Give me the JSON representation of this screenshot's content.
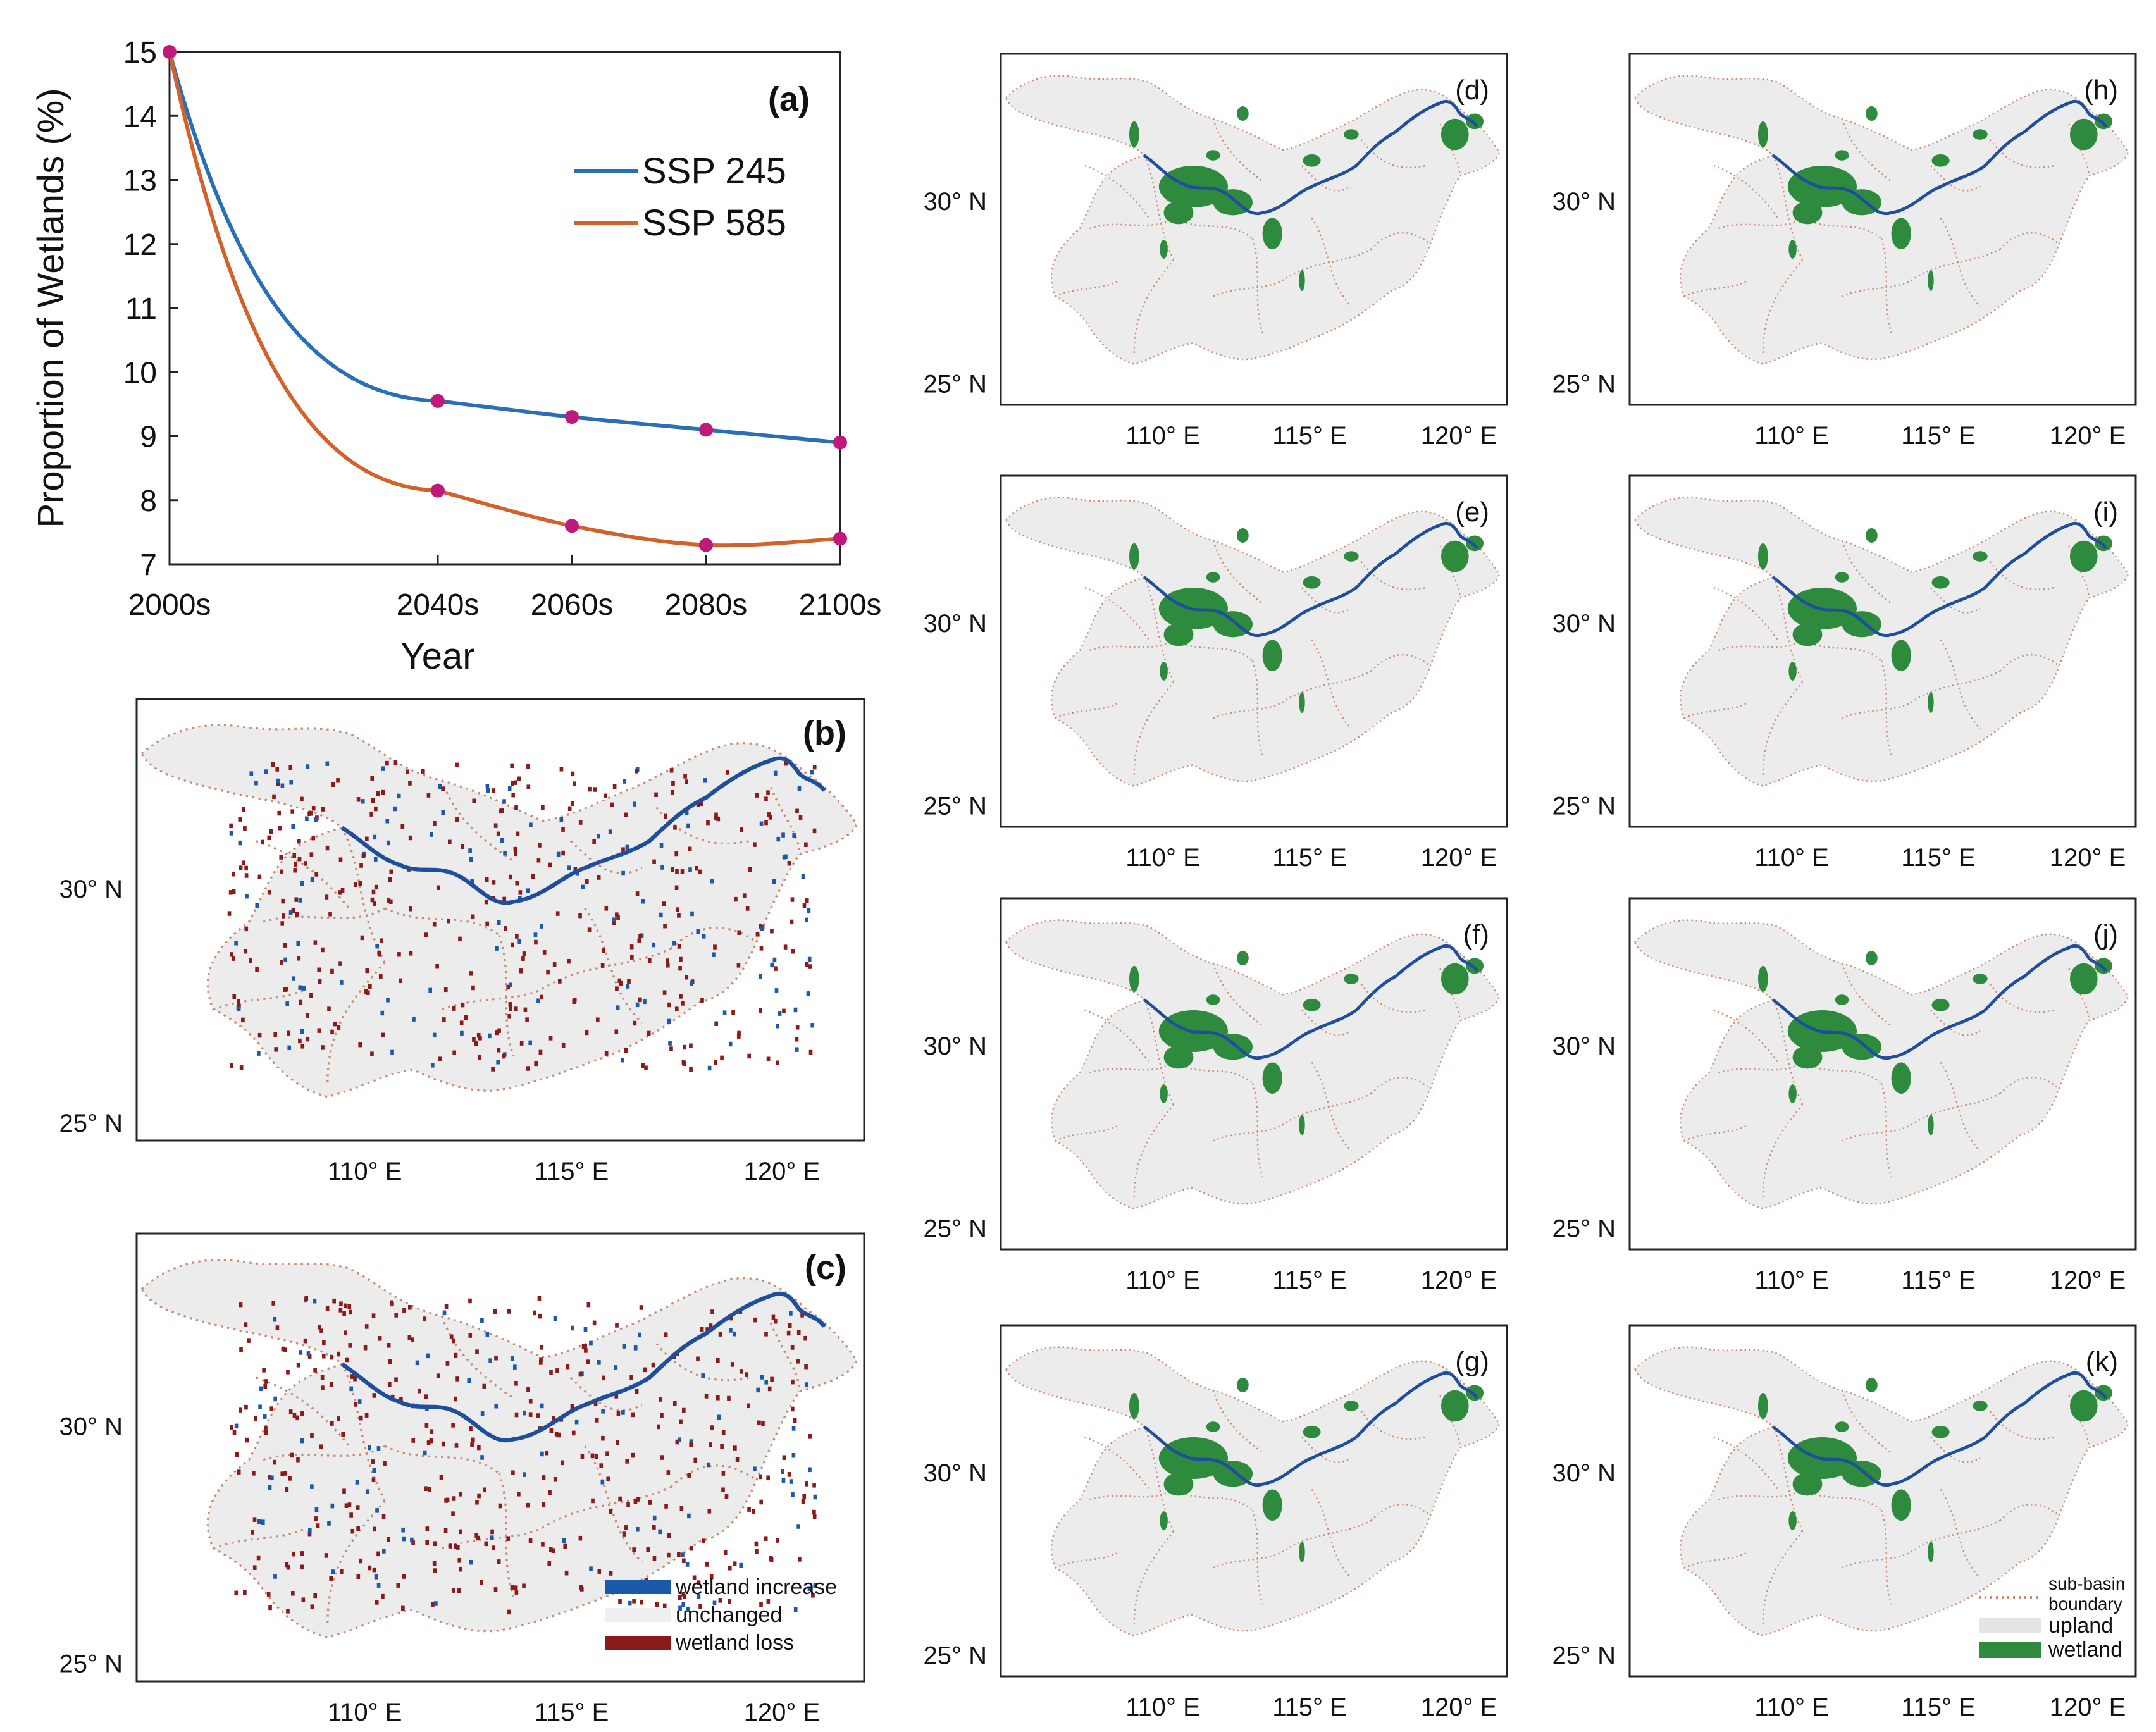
{
  "chart_data": [
    {
      "panel": "(a)",
      "type": "line",
      "ylabel": "Proportion of Wetlands (%)",
      "xlabel": "Year",
      "categories": [
        "2000s",
        "2040s",
        "2060s",
        "2080s",
        "2100s"
      ],
      "x": [
        2000,
        2040,
        2060,
        2080,
        2100
      ],
      "ylim": [
        7,
        15
      ],
      "yticks": [
        7,
        8,
        9,
        10,
        11,
        12,
        13,
        14,
        15
      ],
      "legend_position": "top-right",
      "series": [
        {
          "name": "SSP 245",
          "color": "#2a6fb5",
          "values": [
            15.0,
            9.55,
            9.3,
            9.1,
            8.9
          ]
        },
        {
          "name": "SSP 585",
          "color": "#d2622b",
          "values": [
            15.0,
            8.15,
            7.6,
            7.3,
            7.4
          ]
        }
      ],
      "marker_color": "#c0197a"
    }
  ],
  "maps": {
    "lon_ticks": [
      "110° E",
      "115° E",
      "120° E"
    ],
    "lat_ticks": [
      "30° N",
      "25° N"
    ],
    "change_panels": [
      "(b)",
      "(c)"
    ],
    "wetland_panels": [
      "(d)",
      "(e)",
      "(f)",
      "(g)",
      "(h)",
      "(i)",
      "(j)",
      "(k)"
    ],
    "change_legend": [
      {
        "label": "wetland increase",
        "color": "#1a5aa8"
      },
      {
        "label": "unchanged",
        "color": "#efefef"
      },
      {
        "label": "wetland loss",
        "color": "#8b1a1a"
      }
    ],
    "wetland_legend": {
      "boundary": "sub-basin boundary",
      "boundary_line1": "sub-basin",
      "boundary_line2": "boundary",
      "upland": "upland",
      "wetland": "wetland",
      "boundary_color": "#c98b73",
      "upland_color": "#e4e4e4",
      "wetland_color": "#2e8b3e"
    }
  }
}
